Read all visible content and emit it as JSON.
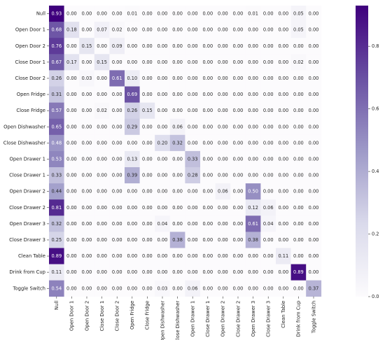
{
  "chart_data": {
    "type": "heatmap",
    "title": "",
    "xlabel": "",
    "ylabel": "",
    "rows": [
      "Null",
      "Open Door 1",
      "Open Door 2",
      "Close Door 1",
      "Close Door 2",
      "Open Fridge",
      "Close Fridge",
      "Open Dishwasher",
      "Close Dishwasher",
      "Open Drawer 1",
      "Close Drawer 1",
      "Open Drawer 2",
      "Close Drawer 2",
      "Open Drawer 3",
      "Close Drawer 3",
      "Clean Table",
      "Drink from Cup",
      "Toggle Switch"
    ],
    "columns": [
      "Null",
      "Open Door 1",
      "Open Door 2",
      "Close Door 1",
      "Close Door 2",
      "Open Fridge",
      "Close Fridge",
      "Open Dishwasher",
      "Close Dishwasher",
      "Open Drawer 1",
      "Close Drawer 1",
      "Open Drawer 2",
      "Close Drawer 2",
      "Open Drawer 3",
      "Close Drawer 3",
      "Clean Table",
      "Drink from Cup",
      "Toggle Switch"
    ],
    "values": [
      [
        0.93,
        0.0,
        0.0,
        0.0,
        0.0,
        0.01,
        0.0,
        0.0,
        0.0,
        0.0,
        0.0,
        0.0,
        0.0,
        0.01,
        0.0,
        0.0,
        0.05,
        0.0
      ],
      [
        0.68,
        0.18,
        0.0,
        0.07,
        0.02,
        0.0,
        0.0,
        0.0,
        0.0,
        0.0,
        0.0,
        0.0,
        0.0,
        0.0,
        0.0,
        0.0,
        0.05,
        0.0
      ],
      [
        0.76,
        0.0,
        0.15,
        0.0,
        0.09,
        0.0,
        0.0,
        0.0,
        0.0,
        0.0,
        0.0,
        0.0,
        0.0,
        0.0,
        0.0,
        0.0,
        0.0,
        0.0
      ],
      [
        0.67,
        0.17,
        0.0,
        0.15,
        0.0,
        0.0,
        0.0,
        0.0,
        0.0,
        0.0,
        0.0,
        0.0,
        0.0,
        0.0,
        0.0,
        0.0,
        0.02,
        0.0
      ],
      [
        0.26,
        0.0,
        0.03,
        0.0,
        0.61,
        0.1,
        0.0,
        0.0,
        0.0,
        0.0,
        0.0,
        0.0,
        0.0,
        0.0,
        0.0,
        0.0,
        0.0,
        0.0
      ],
      [
        0.31,
        0.0,
        0.0,
        0.0,
        0.0,
        0.69,
        0.0,
        0.0,
        0.0,
        0.0,
        0.0,
        0.0,
        0.0,
        0.0,
        0.0,
        0.0,
        0.0,
        0.0
      ],
      [
        0.57,
        0.0,
        0.0,
        0.02,
        0.0,
        0.26,
        0.15,
        0.0,
        0.0,
        0.0,
        0.0,
        0.0,
        0.0,
        0.0,
        0.0,
        0.0,
        0.0,
        0.0
      ],
      [
        0.65,
        0.0,
        0.0,
        0.0,
        0.0,
        0.29,
        0.0,
        0.0,
        0.06,
        0.0,
        0.0,
        0.0,
        0.0,
        0.0,
        0.0,
        0.0,
        0.0,
        0.0
      ],
      [
        0.48,
        0.0,
        0.0,
        0.0,
        0.0,
        0.0,
        0.0,
        0.2,
        0.32,
        0.0,
        0.0,
        0.0,
        0.0,
        0.0,
        0.0,
        0.0,
        0.0,
        0.0
      ],
      [
        0.53,
        0.0,
        0.0,
        0.0,
        0.0,
        0.13,
        0.0,
        0.0,
        0.0,
        0.33,
        0.0,
        0.0,
        0.0,
        0.0,
        0.0,
        0.0,
        0.0,
        0.0
      ],
      [
        0.33,
        0.0,
        0.0,
        0.0,
        0.0,
        0.39,
        0.0,
        0.0,
        0.0,
        0.28,
        0.0,
        0.0,
        0.0,
        0.0,
        0.0,
        0.0,
        0.0,
        0.0
      ],
      [
        0.44,
        0.0,
        0.0,
        0.0,
        0.0,
        0.0,
        0.0,
        0.0,
        0.0,
        0.0,
        0.0,
        0.06,
        0.0,
        0.5,
        0.0,
        0.0,
        0.0,
        0.0
      ],
      [
        0.81,
        0.0,
        0.0,
        0.0,
        0.0,
        0.0,
        0.0,
        0.0,
        0.0,
        0.0,
        0.0,
        0.0,
        0.0,
        0.12,
        0.06,
        0.0,
        0.0,
        0.0
      ],
      [
        0.32,
        0.0,
        0.0,
        0.0,
        0.0,
        0.0,
        0.0,
        0.04,
        0.0,
        0.0,
        0.0,
        0.0,
        0.0,
        0.61,
        0.04,
        0.0,
        0.0,
        0.0
      ],
      [
        0.25,
        0.0,
        0.0,
        0.0,
        0.0,
        0.0,
        0.0,
        0.0,
        0.38,
        0.0,
        0.0,
        0.0,
        0.0,
        0.38,
        0.0,
        0.0,
        0.0,
        0.0
      ],
      [
        0.89,
        0.0,
        0.0,
        0.0,
        0.0,
        0.0,
        0.0,
        0.0,
        0.0,
        0.0,
        0.0,
        0.0,
        0.0,
        0.0,
        0.0,
        0.11,
        0.0,
        0.0
      ],
      [
        0.11,
        0.0,
        0.0,
        0.0,
        0.0,
        0.0,
        0.0,
        0.0,
        0.0,
        0.0,
        0.0,
        0.0,
        0.0,
        0.0,
        0.0,
        0.0,
        0.89,
        0.0
      ],
      [
        0.54,
        0.0,
        0.0,
        0.0,
        0.0,
        0.0,
        0.0,
        0.03,
        0.0,
        0.06,
        0.0,
        0.0,
        0.0,
        0.0,
        0.0,
        0.0,
        0.0,
        0.37
      ]
    ],
    "value_format": "0.00",
    "color_range": [
      0.0,
      0.93
    ],
    "colormap": {
      "low": "#fcfbfd",
      "high": "#3f007d"
    },
    "colorbar": {
      "ticks": [
        0.0,
        0.2,
        0.4,
        0.6,
        0.8
      ],
      "tick_labels": [
        "0.0",
        "0.2",
        "0.4",
        "0.6",
        "0.8"
      ]
    },
    "grid": false,
    "legend": "colorbar-right"
  }
}
